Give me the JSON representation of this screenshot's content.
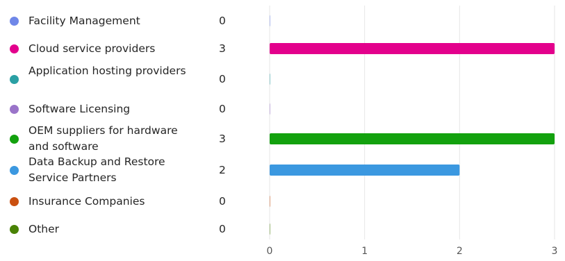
{
  "chart_data": {
    "type": "bar",
    "orientation": "horizontal",
    "categories": [
      "Facility Management",
      "Cloud service providers",
      "Application hosting providers",
      "Software Licensing",
      "OEM suppliers for hardware and software",
      "Data Backup and Restore Service Partners",
      "Insurance Companies",
      "Other"
    ],
    "values": [
      0,
      3,
      0,
      0,
      3,
      2,
      0,
      0
    ],
    "colors": [
      "#6f87e8",
      "#e3008c",
      "#2aa0a4",
      "#9a74c9",
      "#13a10e",
      "#3b98e0",
      "#ca5010",
      "#498205"
    ],
    "xlim": [
      0,
      3
    ],
    "xticks": [
      0,
      1,
      2,
      3
    ],
    "grid": true,
    "legend_position": "left"
  }
}
